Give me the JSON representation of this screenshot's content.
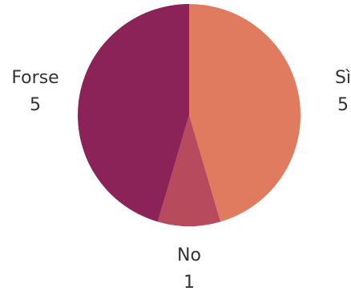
{
  "chart_data": {
    "type": "pie",
    "title": "",
    "categories": [
      "Sì",
      "No",
      "Forse"
    ],
    "values": [
      5,
      1,
      5
    ],
    "colors": [
      "#E07B5F",
      "#B84A5E",
      "#8C2358"
    ],
    "start_angle_deg": 0,
    "direction": "clockwise",
    "labels_show_value": true
  }
}
